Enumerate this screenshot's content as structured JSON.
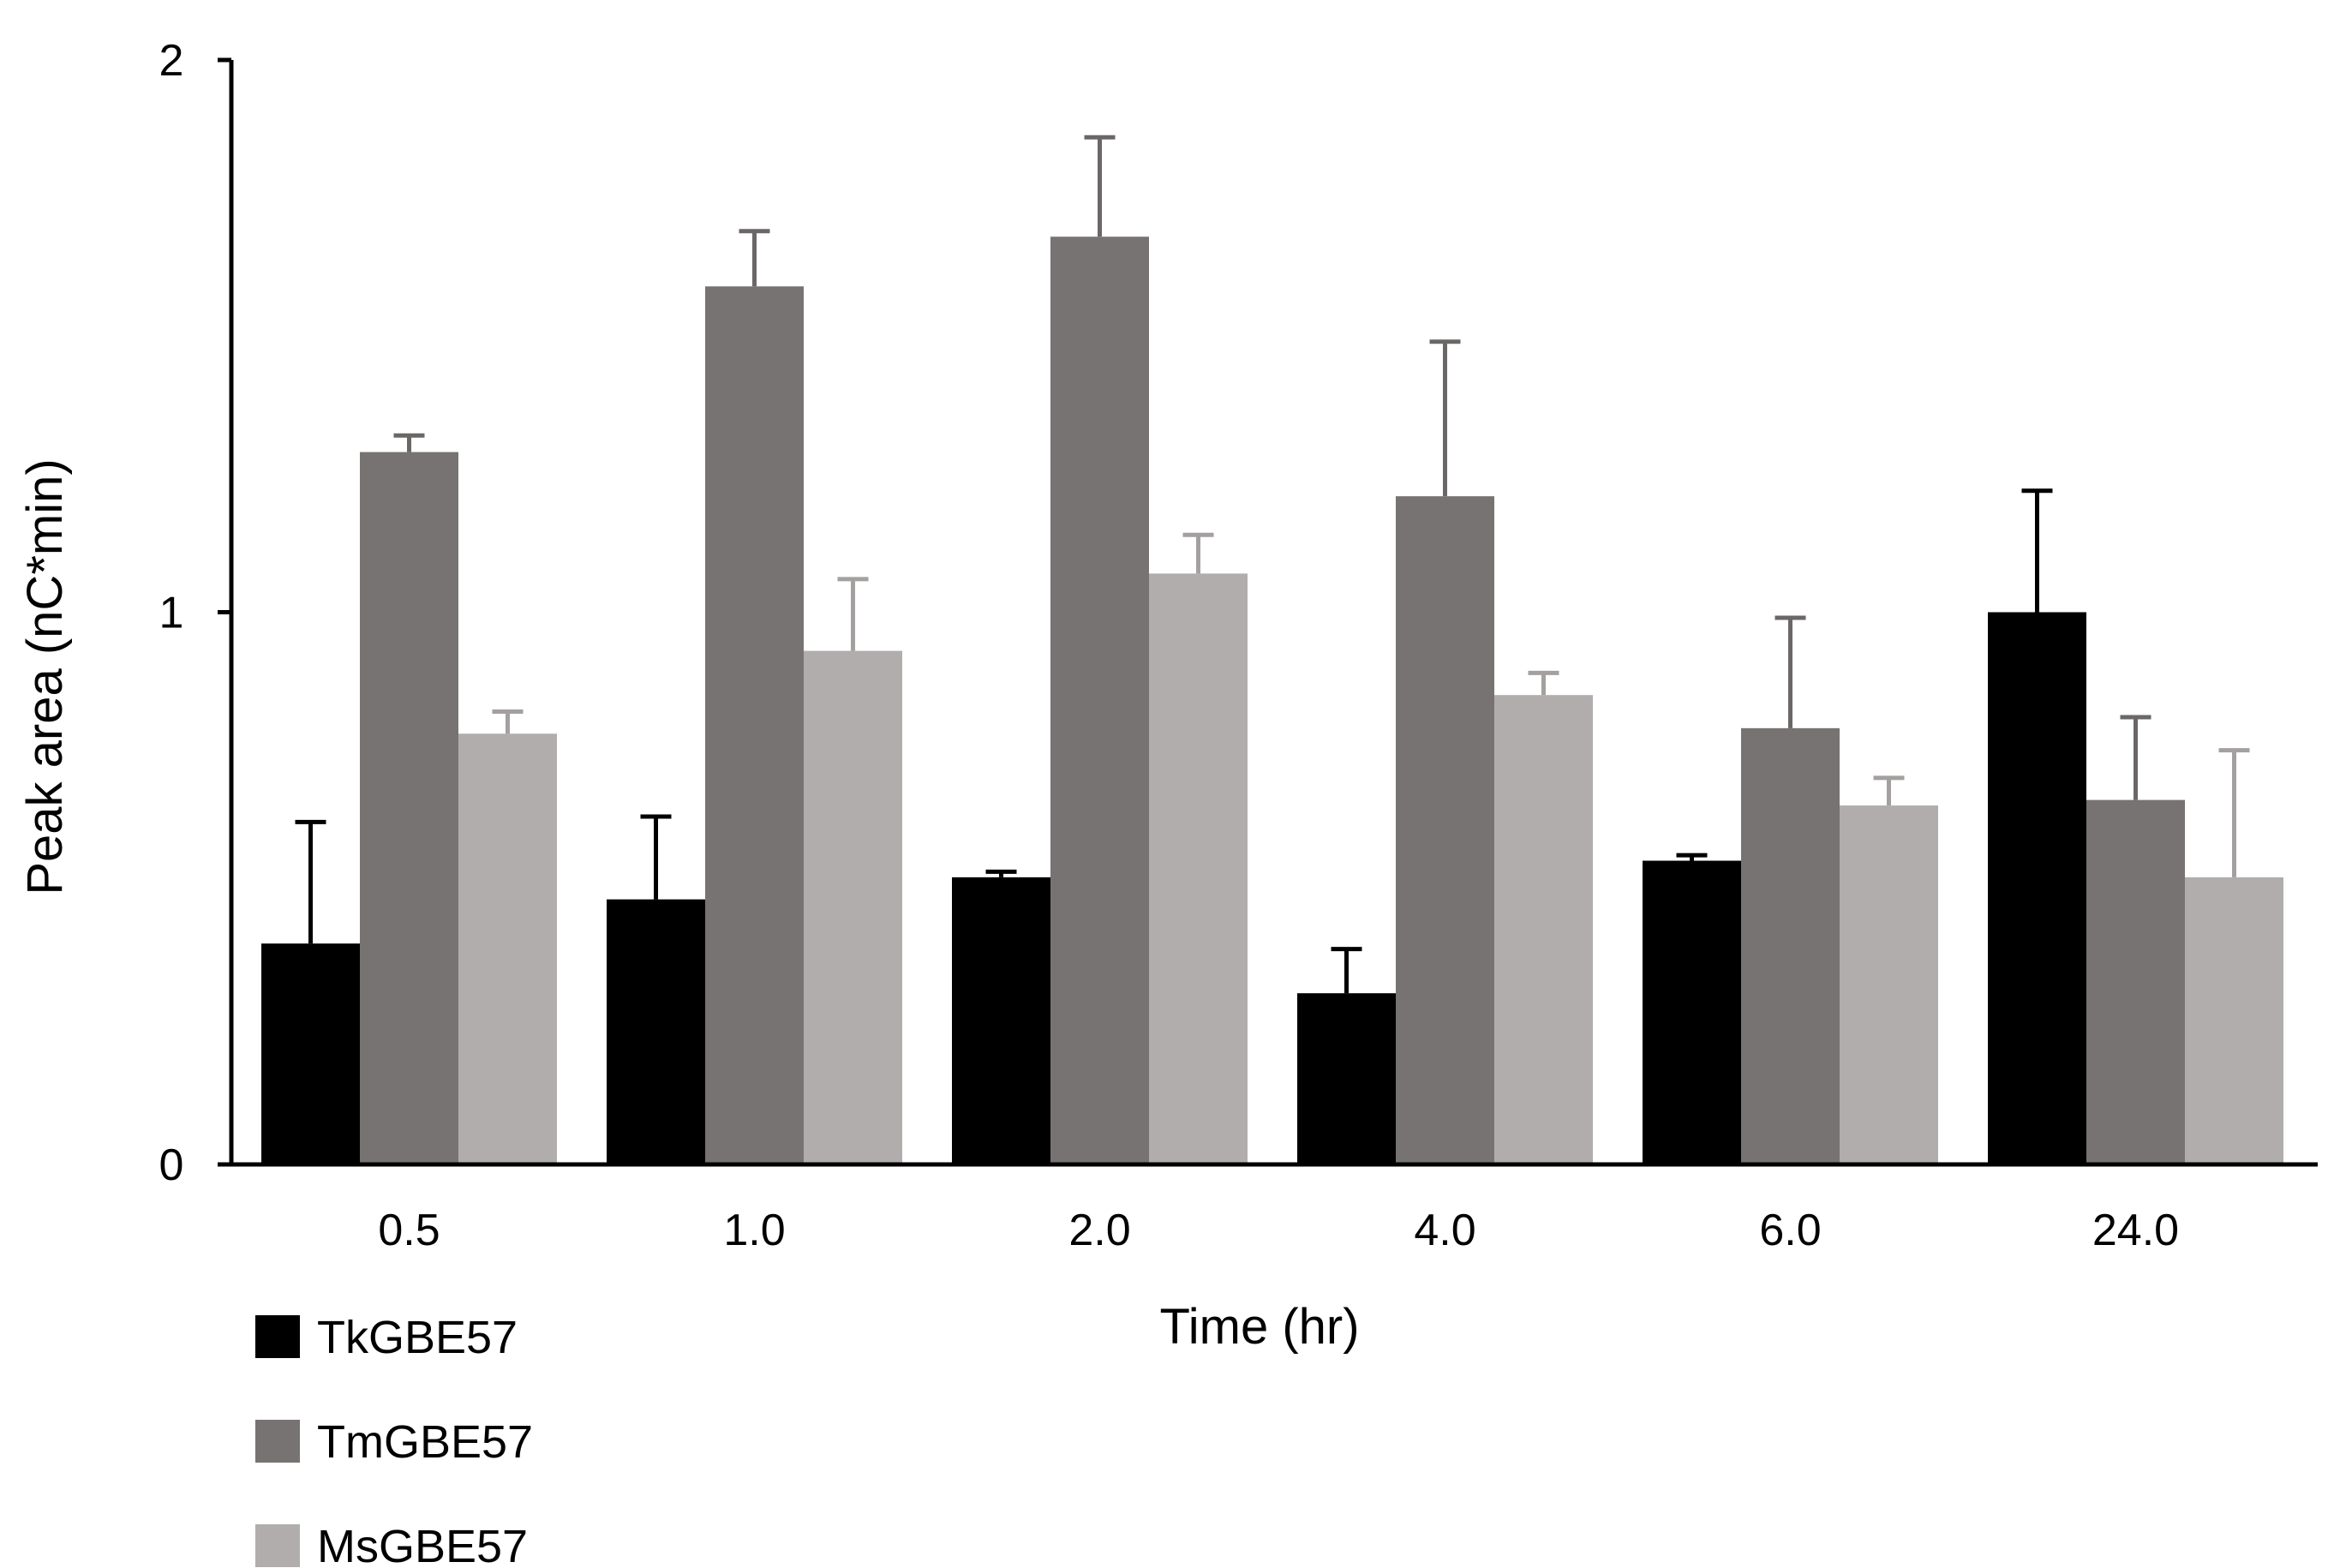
{
  "chart_data": {
    "type": "bar",
    "title": "",
    "xlabel": "Time (hr)",
    "ylabel": "Peak area (nC*min)",
    "ylim": [
      0,
      2
    ],
    "yticks": [
      "0",
      "1",
      "2"
    ],
    "categories": [
      "0.5",
      "1.0",
      "2.0",
      "4.0",
      "6.0",
      "24.0"
    ],
    "legend_position": "bottom-left",
    "grid": false,
    "series": [
      {
        "name": "TkGBE57",
        "color": "#000000",
        "errorColor": "#000000",
        "values": [
          0.4,
          0.48,
          0.52,
          0.31,
          0.55,
          1.0
        ],
        "errors": [
          0.22,
          0.15,
          0.01,
          0.08,
          0.01,
          0.22
        ]
      },
      {
        "name": "TmGBE57",
        "color": "#777372",
        "errorColor": "#6b6766",
        "values": [
          1.29,
          1.59,
          1.68,
          1.21,
          0.79,
          0.66
        ],
        "errors": [
          0.03,
          0.1,
          0.18,
          0.28,
          0.2,
          0.15
        ]
      },
      {
        "name": "MsGBE57",
        "color": "#b0adac",
        "errorColor": "#a3a09f",
        "values": [
          0.78,
          0.93,
          1.07,
          0.85,
          0.65,
          0.52
        ],
        "errors": [
          0.04,
          0.13,
          0.07,
          0.04,
          0.05,
          0.23
        ]
      }
    ]
  }
}
